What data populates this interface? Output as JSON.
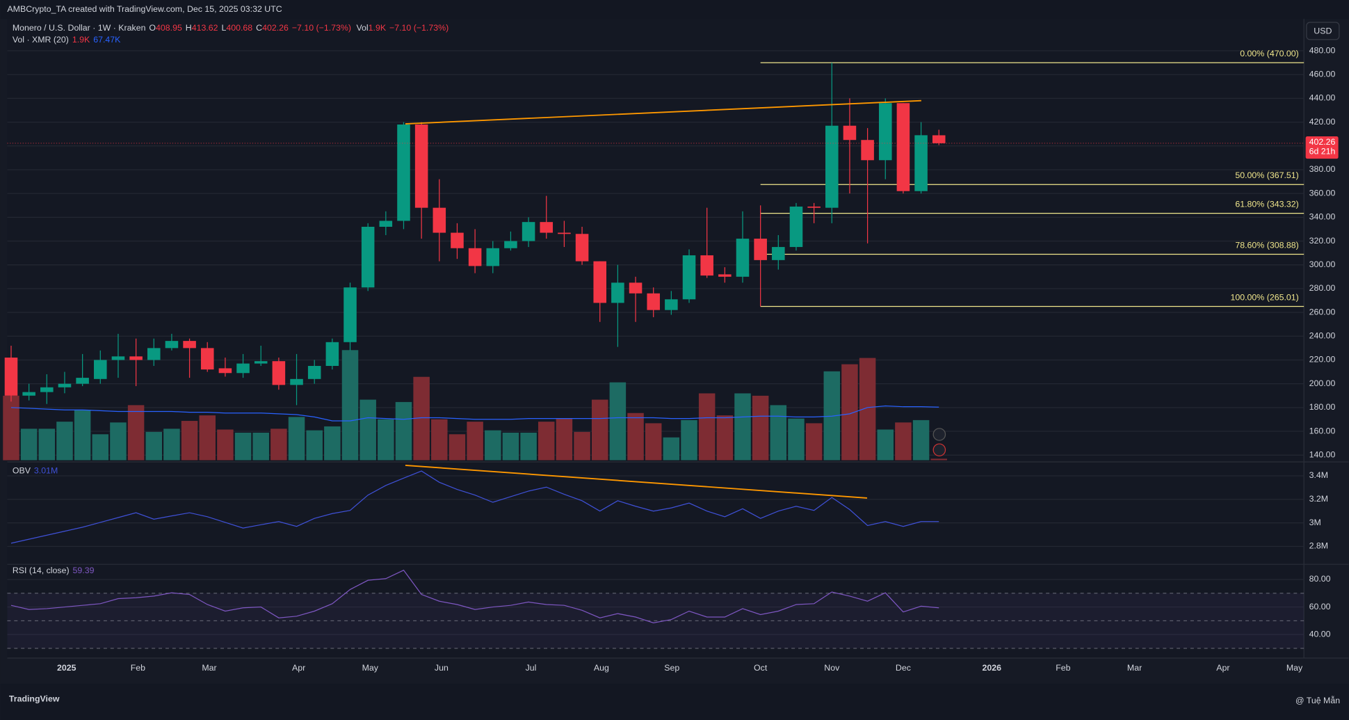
{
  "header": {
    "attribution": "AMBCrypto_TA created with TradingView.com, Dec 15, 2025 03:32 UTC",
    "ohlc_keys": [
      "O",
      "H",
      "L",
      "C"
    ],
    "change": "−7.10 (−1.73%)",
    "vol_label": "Vol",
    "vol_value": "1.9K",
    "vol_ma_label": "Vol · XMR (20)",
    "vol_ma_values": [
      "1.9K",
      "67.47K"
    ]
  },
  "chart_data": [
    {
      "type": "candlestick",
      "title": "Monero / U.S. Dollar · 1W · Kraken",
      "currency": "USD",
      "countdown": "6d 21h",
      "open": [
        222,
        190,
        193,
        197,
        200,
        204,
        220,
        223,
        220,
        230,
        236,
        230,
        213,
        209,
        217,
        219,
        199,
        204,
        215,
        235,
        281,
        332,
        337,
        418,
        348,
        327,
        314,
        299,
        314,
        320,
        336,
        327,
        326,
        303,
        268,
        285,
        276,
        262,
        271,
        308,
        292,
        290,
        322,
        304,
        315,
        349,
        348,
        417,
        405,
        388,
        436,
        362,
        408.95
      ],
      "high": [
        232,
        200,
        208,
        210,
        225,
        228,
        242,
        238,
        238,
        242,
        238,
        235,
        222,
        225,
        232,
        222,
        225,
        220,
        238,
        285,
        335,
        345,
        420,
        420,
        372,
        335,
        330,
        320,
        328,
        340,
        358,
        337,
        332,
        303,
        300,
        290,
        281,
        278,
        313,
        348,
        298,
        345,
        350,
        325,
        352,
        352,
        470,
        440,
        415,
        440,
        436,
        420,
        413.62
      ],
      "low": [
        185,
        186,
        183,
        192,
        198,
        200,
        205,
        198,
        215,
        228,
        205,
        210,
        206,
        205,
        215,
        195,
        182,
        200,
        212,
        228,
        278,
        325,
        330,
        322,
        303,
        305,
        293,
        293,
        312,
        315,
        322,
        315,
        300,
        252,
        231,
        252,
        256,
        258,
        268,
        289,
        285,
        285,
        265,
        296,
        312,
        335,
        335,
        360,
        318,
        372,
        360,
        360,
        400.68
      ],
      "close": [
        190,
        193,
        197,
        200,
        205,
        220,
        223,
        220,
        230,
        236,
        230,
        212,
        209,
        217,
        219,
        199,
        204,
        215,
        235,
        281,
        332,
        337,
        418,
        348,
        327,
        314,
        299,
        314,
        320,
        336,
        327,
        326,
        303,
        268,
        285,
        276,
        262,
        271,
        308,
        291,
        290,
        322,
        304,
        315,
        349,
        348,
        417,
        405,
        388,
        436,
        362,
        409,
        402.26
      ],
      "colors": {
        "up": "#089981",
        "down": "#f23645",
        "vol_up": "#1d6b63",
        "vol_down": "#7e2c33",
        "vol_ma": "#2962ff",
        "fib": "#f0e68c",
        "trend": "#ff9800"
      },
      "volume": [
        82,
        40,
        40,
        49,
        64,
        33,
        48,
        70,
        36,
        40,
        50,
        57,
        39,
        35,
        35,
        40,
        55,
        38,
        43,
        140,
        77,
        52,
        74,
        106,
        52,
        33,
        49,
        38,
        35,
        35,
        49,
        53,
        36,
        77,
        99,
        60,
        47,
        29,
        51,
        85,
        57,
        85,
        82,
        70,
        53,
        47,
        113,
        122,
        130,
        39,
        48,
        51,
        1.9
      ],
      "volume_ma": [
        67,
        66,
        65,
        64,
        64,
        63,
        62,
        62,
        62,
        62,
        61,
        61,
        60,
        60,
        60,
        59,
        58,
        55,
        50,
        50,
        54,
        53,
        52,
        54,
        54,
        53,
        52,
        52,
        52,
        53,
        53,
        53,
        53,
        53,
        54,
        54,
        54,
        53,
        53,
        54,
        54,
        55,
        56,
        56,
        55,
        55,
        56,
        59,
        67,
        69,
        68,
        68,
        67.47
      ],
      "ylim": [
        135.7,
        506.8
      ],
      "yticks": [
        {
          "value": 480,
          "label": "480.00"
        },
        {
          "value": 460,
          "label": "460.00"
        },
        {
          "value": 440,
          "label": "440.00"
        },
        {
          "value": 420,
          "label": "420.00"
        },
        {
          "value": 400,
          "label": "400.00"
        },
        {
          "value": 380,
          "label": "380.00"
        },
        {
          "value": 360,
          "label": "360.00"
        },
        {
          "value": 340,
          "label": "340.00"
        },
        {
          "value": 320,
          "label": "320.00"
        },
        {
          "value": 300,
          "label": "300.00"
        },
        {
          "value": 280,
          "label": "280.00"
        },
        {
          "value": 260,
          "label": "260.00"
        },
        {
          "value": 240,
          "label": "240.00"
        },
        {
          "value": 220,
          "label": "220.00"
        },
        {
          "value": 200,
          "label": "200.00"
        },
        {
          "value": 180,
          "label": "180.00"
        },
        {
          "value": 160,
          "label": "160.00"
        },
        {
          "value": 140,
          "label": "140.00"
        }
      ],
      "fib_levels": [
        {
          "value": 470,
          "label": "0.00% (470.00)"
        },
        {
          "value": 367.51,
          "label": "50.00% (367.51)"
        },
        {
          "value": 343.32,
          "label": "61.80% (343.32)"
        },
        {
          "value": 308.88,
          "label": "78.60% (308.88)"
        },
        {
          "value": 265.01,
          "label": "100.00% (265.01)"
        }
      ]
    },
    {
      "type": "line",
      "title": "OBV",
      "last_label": "3.01M",
      "color": "#3f51d8",
      "values": [
        2827000,
        2861000,
        2895000,
        2929000,
        2963000,
        3004000,
        3045000,
        3086000,
        3031000,
        3059000,
        3086000,
        3052000,
        3004000,
        2956000,
        2984000,
        3011000,
        2970000,
        3038000,
        3079000,
        3106000,
        3236000,
        3318000,
        3380000,
        3441000,
        3345000,
        3284000,
        3236000,
        3175000,
        3223000,
        3270000,
        3304000,
        3243000,
        3188000,
        3100000,
        3188000,
        3141000,
        3100000,
        3127000,
        3168000,
        3100000,
        3052000,
        3120000,
        3038000,
        3100000,
        3141000,
        3106000,
        3216000,
        3113000,
        2977000,
        3011000,
        2970000,
        3011000,
        3011000
      ],
      "ylim": [
        2677000,
        3496000
      ],
      "yticks": [
        {
          "value": 3400000,
          "label": "3.4M"
        },
        {
          "value": 3200000,
          "label": "3.2M"
        },
        {
          "value": 3000000,
          "label": "3M"
        },
        {
          "value": 2800000,
          "label": "2.8M"
        }
      ]
    },
    {
      "type": "line",
      "title": "RSI (14, close)",
      "color": "#7e57c2",
      "bands": [
        70,
        50,
        30
      ],
      "values": [
        61.2,
        58.2,
        58.8,
        60.0,
        61.2,
        62.4,
        66.1,
        66.7,
        67.9,
        70.3,
        69.1,
        61.8,
        57.0,
        59.4,
        60.0,
        52.1,
        53.3,
        57.0,
        62.4,
        72.7,
        79.4,
        80.6,
        86.7,
        69.1,
        64.2,
        61.8,
        58.2,
        60.0,
        61.2,
        63.6,
        61.8,
        61.2,
        57.6,
        52.1,
        55.2,
        52.7,
        48.5,
        50.9,
        57.0,
        52.7,
        52.7,
        58.8,
        54.5,
        57.0,
        61.8,
        62.4,
        70.9,
        67.9,
        64.2,
        70.3,
        56.4,
        60.6,
        59.39
      ],
      "ylim": [
        24.8,
        88.5
      ],
      "yticks": [
        {
          "value": 80,
          "label": "80.00"
        },
        {
          "value": 60,
          "label": "60.00"
        },
        {
          "value": 40,
          "label": "40.00"
        }
      ]
    }
  ],
  "x_axis_labels": [
    "2025",
    "Feb",
    "Mar",
    "Apr",
    "May",
    "Jun",
    "Jul",
    "Aug",
    "Sep",
    "Oct",
    "Nov",
    "Dec",
    "2026",
    "Feb",
    "Mar",
    "Apr",
    "May"
  ],
  "footer": {
    "logo": "TradingView",
    "watermark": "@ Tuệ Mẫn"
  }
}
